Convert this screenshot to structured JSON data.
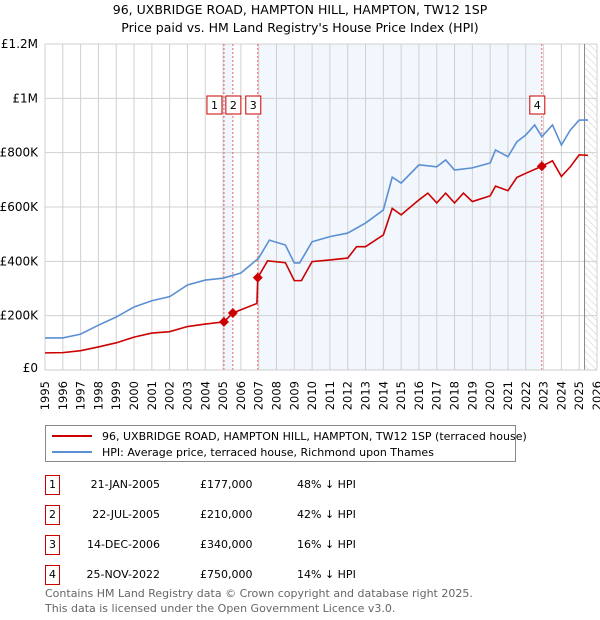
{
  "header": {
    "title": "96, UXBRIDGE ROAD, HAMPTON HILL, HAMPTON, TW12 1SP",
    "subtitle": "Price paid vs. HM Land Registry's House Price Index (HPI)"
  },
  "chart_data": {
    "type": "line",
    "title": "96, UXBRIDGE ROAD, HAMPTON HILL, HAMPTON, TW12 1SP",
    "subtitle": "Price paid vs. HM Land Registry's House Price Index (HPI)",
    "xlim": [
      1995,
      2026
    ],
    "ylim": [
      0,
      1200000
    ],
    "x_ticks": [
      "1995",
      "1996",
      "1997",
      "1998",
      "1999",
      "2000",
      "2001",
      "2002",
      "2003",
      "2004",
      "2005",
      "2006",
      "2007",
      "2008",
      "2009",
      "2010",
      "2011",
      "2012",
      "2013",
      "2014",
      "2015",
      "2016",
      "2017",
      "2018",
      "2019",
      "2020",
      "2021",
      "2022",
      "2023",
      "2024",
      "2025",
      "2026"
    ],
    "y_ticks": [
      {
        "value": 0,
        "label": "£0"
      },
      {
        "value": 200000,
        "label": "£200K"
      },
      {
        "value": 400000,
        "label": "£400K"
      },
      {
        "value": 600000,
        "label": "£600K"
      },
      {
        "value": 800000,
        "label": "£800K"
      },
      {
        "value": 1000000,
        "label": "£1M"
      },
      {
        "value": 1200000,
        "label": "£1.2M"
      }
    ],
    "grid": true,
    "forecast_from": 2025.3,
    "shaded_ranges": [
      [
        2005.05,
        2005.55
      ],
      [
        2006.95,
        2022.9
      ]
    ],
    "series": [
      {
        "name": "96, UXBRIDGE ROAD, HAMPTON HILL, HAMPTON, TW12 1SP (terraced house)",
        "color": "#cc0000",
        "x": [
          1995,
          1996,
          1997,
          1998,
          1999,
          2000,
          2001,
          2002,
          2003,
          2004,
          2005.05,
          2005.55,
          2006.9,
          2006.95,
          2007.5,
          2008.5,
          2009,
          2009.4,
          2010,
          2011,
          2012,
          2012.5,
          2013,
          2014,
          2014.5,
          2015,
          2016,
          2016.5,
          2017,
          2017.5,
          2018,
          2018.5,
          2019,
          2020,
          2020.3,
          2021,
          2021.5,
          2022,
          2022.9,
          2023.5,
          2024,
          2024.5,
          2025,
          2025.5
        ],
        "y": [
          63000,
          64000,
          71000,
          85000,
          100000,
          121000,
          136000,
          141000,
          160000,
          169000,
          177000,
          210000,
          245000,
          340000,
          402000,
          395000,
          329000,
          329000,
          399000,
          405000,
          412000,
          454000,
          454000,
          497000,
          595000,
          571000,
          626000,
          651000,
          615000,
          651000,
          615000,
          651000,
          620000,
          641000,
          677000,
          660000,
          709000,
          724000,
          750000,
          770000,
          712000,
          748000,
          792000,
          790000
        ]
      },
      {
        "name": "HPI: Average price, terraced house, Richmond upon Thames",
        "color": "#5b8fd4",
        "x": [
          1995,
          1996,
          1997,
          1998,
          1999,
          2000,
          2001,
          2002,
          2003,
          2004,
          2005,
          2006,
          2007,
          2007.6,
          2008.5,
          2009,
          2009.3,
          2010,
          2011,
          2012,
          2013,
          2014,
          2014.5,
          2015,
          2016,
          2017,
          2017.5,
          2018,
          2019,
          2020,
          2020.3,
          2021,
          2021.5,
          2022,
          2022.5,
          2022.9,
          2023.5,
          2024,
          2024.5,
          2025,
          2025.5
        ],
        "y": [
          118000,
          118000,
          132000,
          165000,
          195000,
          232000,
          255000,
          270000,
          313000,
          331000,
          338000,
          357000,
          412000,
          478000,
          460000,
          394000,
          394000,
          472000,
          491000,
          504000,
          541000,
          589000,
          710000,
          688000,
          755000,
          748000,
          773000,
          736000,
          744000,
          762000,
          810000,
          785000,
          840000,
          865000,
          902000,
          859000,
          902000,
          828000,
          883000,
          920000,
          920000
        ]
      }
    ],
    "sales": [
      {
        "label": "1",
        "x": 2005.05,
        "price": 177000
      },
      {
        "label": "2",
        "x": 2005.55,
        "price": 210000
      },
      {
        "label": "3",
        "x": 2006.95,
        "price": 340000
      },
      {
        "label": "4",
        "x": 2022.9,
        "price": 750000
      }
    ]
  },
  "legend": [
    {
      "label": "96, UXBRIDGE ROAD, HAMPTON HILL, HAMPTON, TW12 1SP (terraced house)",
      "color": "#cc0000"
    },
    {
      "label": "HPI: Average price, terraced house, Richmond upon Thames",
      "color": "#5b8fd4"
    }
  ],
  "transactions": [
    {
      "num": "1",
      "date": "21-JAN-2005",
      "price": "£177,000",
      "hpi": "48% ↓ HPI"
    },
    {
      "num": "2",
      "date": "22-JUL-2005",
      "price": "£210,000",
      "hpi": "42% ↓ HPI"
    },
    {
      "num": "3",
      "date": "14-DEC-2006",
      "price": "£340,000",
      "hpi": "16% ↓ HPI"
    },
    {
      "num": "4",
      "date": "25-NOV-2022",
      "price": "£750,000",
      "hpi": "14% ↓ HPI"
    }
  ],
  "footer": {
    "line1": "Contains HM Land Registry data © Crown copyright and database right 2025.",
    "line2": "This data is licensed under the Open Government Licence v3.0."
  }
}
